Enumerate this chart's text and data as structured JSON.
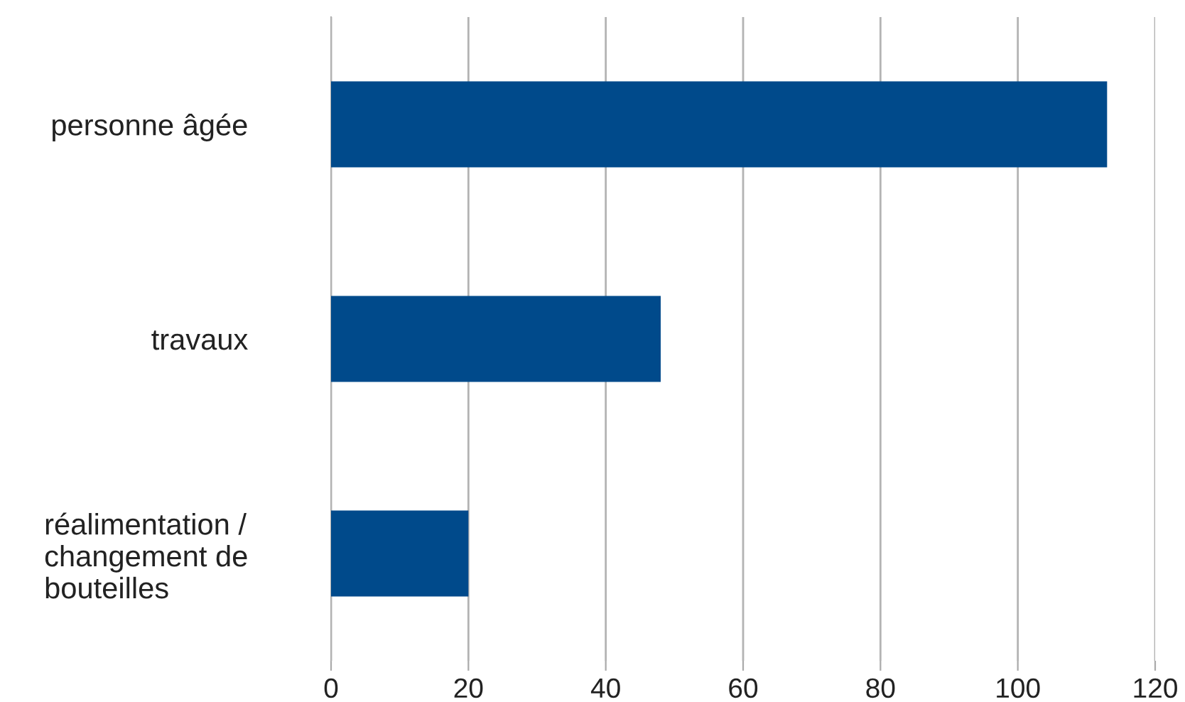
{
  "chart_data": {
    "type": "bar",
    "orientation": "horizontal",
    "categories": [
      "personne âgée",
      "travaux",
      "réalimentation /\nchangement de\nbouteilles"
    ],
    "values": [
      113,
      48,
      20
    ],
    "color": "#004a8b",
    "xlim": [
      0,
      120
    ],
    "xticks": [
      0,
      20,
      40,
      60,
      80,
      100,
      120
    ],
    "grid": "x",
    "legend": false
  }
}
